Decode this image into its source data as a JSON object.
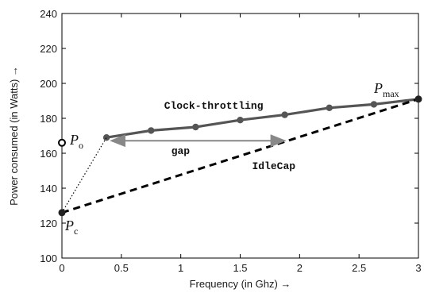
{
  "chart_data": {
    "type": "line",
    "xlabel": "Frequency (in Ghz) →",
    "ylabel": "Power consumed (in Watts) →",
    "xlim": [
      0,
      3
    ],
    "ylim": [
      100,
      240
    ],
    "x_ticks": [
      0,
      0.5,
      1,
      1.5,
      2,
      2.5,
      3
    ],
    "x_tick_labels": [
      "0",
      "0.5",
      "1",
      "1.5",
      "2",
      "2.5",
      "3"
    ],
    "y_ticks": [
      100,
      120,
      140,
      160,
      180,
      200,
      220,
      240
    ],
    "y_tick_labels": [
      "100",
      "120",
      "140",
      "160",
      "180",
      "200",
      "220",
      "240"
    ],
    "grid": false,
    "series": [
      {
        "name": "Clock-throttling",
        "style": "solid",
        "color": "#555555",
        "markers": true,
        "x": [
          0.375,
          0.75,
          1.125,
          1.5,
          1.875,
          2.25,
          2.625,
          3.0
        ],
        "y": [
          169,
          173,
          175,
          179,
          182,
          186,
          188,
          191
        ]
      },
      {
        "name": "IdleCap",
        "style": "dashed",
        "color": "#000000",
        "markers": false,
        "x": [
          0,
          3.0
        ],
        "y": [
          126,
          191
        ]
      },
      {
        "style": "dotted",
        "color": "#000000",
        "markers": false,
        "x": [
          0,
          0.375
        ],
        "y": [
          126,
          169
        ]
      }
    ],
    "points": [
      {
        "label_main": "P",
        "label_sub": "o",
        "x": 0,
        "y": 166,
        "marker": "open-circle"
      },
      {
        "label_main": "P",
        "label_sub": "c",
        "x": 0,
        "y": 126,
        "marker": "filled-circle"
      },
      {
        "label_main": "P",
        "label_sub": "max",
        "x": 3.0,
        "y": 191,
        "marker": "filled-circle"
      }
    ],
    "gap_arrow": {
      "label": "gap",
      "x_from": 0.375,
      "x_to": 1.875,
      "y": 169
    },
    "annotations": {
      "clock_throttling": "Clock-throttling",
      "idlecap": "IdleCap",
      "gap": "gap"
    },
    "colors": {
      "clock_line": "#555555",
      "marker": "#555555",
      "arrow": "#888888",
      "axis": "#000000"
    }
  }
}
